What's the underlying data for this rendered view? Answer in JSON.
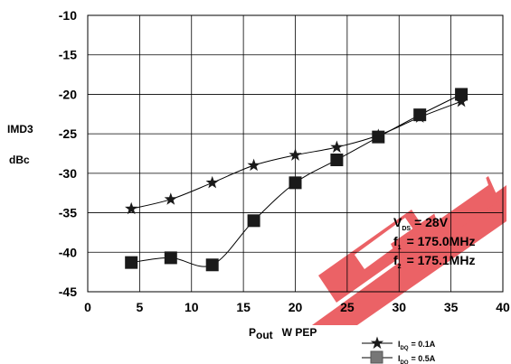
{
  "chart_data": {
    "type": "line",
    "ylabel_line1": "IMD3",
    "ylabel_line2": "dBc",
    "xlabel": {
      "p": "P",
      "sub": "out",
      "rest": "W  PEP"
    },
    "xlim": [
      0,
      40
    ],
    "ylim": [
      -45,
      -10
    ],
    "x_ticks": [
      0,
      5,
      10,
      15,
      20,
      25,
      30,
      35,
      40
    ],
    "y_ticks": [
      -10,
      -15,
      -20,
      -25,
      -30,
      -35,
      -40,
      -45
    ],
    "grid": true,
    "series": [
      {
        "id": "idq01",
        "marker": "star",
        "x": [
          4.2,
          8,
          12,
          16,
          20,
          24,
          28,
          32,
          36
        ],
        "y": [
          -34.5,
          -33.3,
          -31.2,
          -29,
          -27.7,
          -26.7,
          -25.2,
          -22.9,
          -20.9
        ]
      },
      {
        "id": "idq05",
        "marker": "square",
        "x": [
          4.2,
          8,
          12,
          16,
          20,
          24,
          28,
          32,
          36
        ],
        "y": [
          -41.3,
          -40.7,
          -41.6,
          -36,
          -31.2,
          -28.3,
          -25.4,
          -22.6,
          -20
        ]
      }
    ],
    "annotations": [
      {
        "main": "V",
        "sub": "DS",
        "rest": "= 28V"
      },
      {
        "main": "f",
        "sub": "1",
        "rest": "= 175.0MHz"
      },
      {
        "main": "f",
        "sub": "2",
        "rest": "= 175.1MHz"
      }
    ],
    "legend": [
      {
        "series": "idq01",
        "main": "I",
        "sub": "DQ",
        "rest": "= 0.1A"
      },
      {
        "series": "idq05",
        "main": "I",
        "sub": "DQ",
        "rest": "= 0.5A"
      }
    ],
    "watermark_color": "#e8474c",
    "line_color": "#000000",
    "square_color": "#1a1a1a"
  }
}
